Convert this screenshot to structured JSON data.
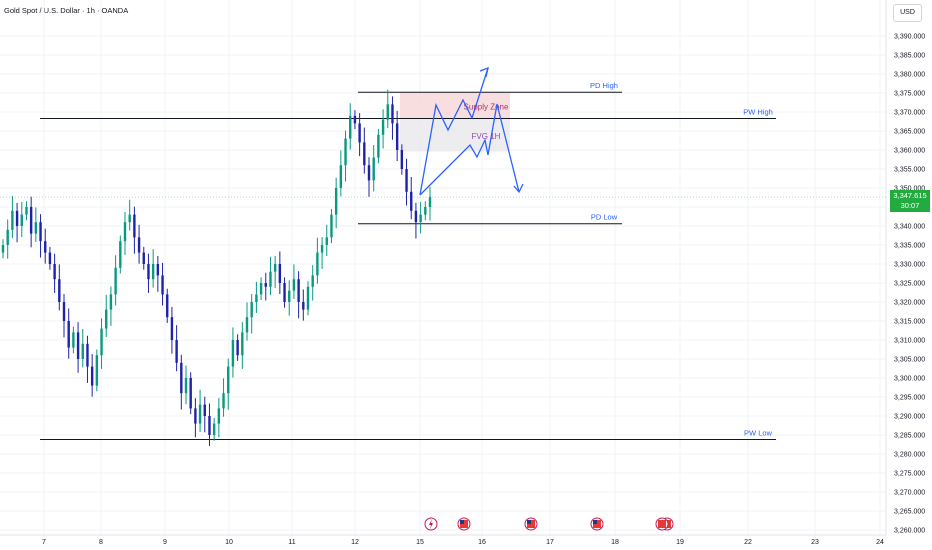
{
  "header": {
    "title": "Gold Spot / U.S. Dollar · 1h · OANDA"
  },
  "currency_button": "USD",
  "last_price": {
    "value": "3,347.615",
    "countdown": "30:07"
  },
  "colors": {
    "up": "#089981",
    "down": "#1e22aa",
    "grid": "#f2f3f5",
    "level": "#131722",
    "label": "#2962ff",
    "path": "#2962ff",
    "supply_zone": "#f7d6d8",
    "fvg": "#e8e8ec",
    "price_tag": "#22ab3e"
  },
  "event_icons": [
    "lightning-event-icon",
    "us-flag-event-icon",
    "us-flag-event-icon",
    "us-flag-event-icon",
    "us-flag-event-icon"
  ],
  "chart_data": {
    "type": "candlestick",
    "title": "Gold Spot / U.S. Dollar · 1h · OANDA",
    "y_axis": {
      "range": [
        3257,
        3395
      ],
      "ticks": [
        "3,390.000",
        "3,385.000",
        "3,380.000",
        "3,375.000",
        "3,370.000",
        "3,365.000",
        "3,360.000",
        "3,355.000",
        "3,350.000",
        "3,345.000",
        "3,340.000",
        "3,335.000",
        "3,330.000",
        "3,325.000",
        "3,320.000",
        "3,315.000",
        "3,310.000",
        "3,305.000",
        "3,300.000",
        "3,295.000",
        "3,290.000",
        "3,285.000",
        "3,280.000",
        "3,275.000",
        "3,270.000",
        "3,265.000",
        "3,260.000"
      ]
    },
    "x_axis": {
      "ticks": [
        "7",
        "8",
        "9",
        "10",
        "11",
        "12",
        "15",
        "16",
        "17",
        "18",
        "19",
        "22",
        "23",
        "24"
      ]
    },
    "levels": [
      {
        "label": "PD High",
        "price": 3375.2
      },
      {
        "label": "PW High",
        "price": 3368.3
      },
      {
        "label": "PD Low",
        "price": 3340.6
      },
      {
        "label": "PW Low",
        "price": 3283.8
      }
    ],
    "zones": [
      {
        "label": "Supply Zone",
        "top": 3375.2,
        "bottom": 3368.3
      },
      {
        "label": "FVG 1H",
        "top": 3368.3,
        "bottom": 3359.6
      }
    ],
    "closes": [
      3335,
      3339,
      3344,
      3340,
      3343,
      3345,
      3338,
      3341,
      3336,
      3333,
      3330,
      3326,
      3320,
      3315,
      3308,
      3312,
      3305,
      3309,
      3303,
      3298,
      3306,
      3313,
      3318,
      3322,
      3329,
      3336,
      3341,
      3343,
      3337,
      3333,
      3330,
      3326,
      3330,
      3327,
      3322,
      3316,
      3310,
      3304,
      3296,
      3300,
      3292,
      3288,
      3293,
      3290,
      3285,
      3288,
      3292,
      3296,
      3303,
      3310,
      3306,
      3312,
      3316,
      3320,
      3322,
      3325,
      3324,
      3328,
      3330,
      3325,
      3320,
      3323,
      3326,
      3320,
      3318,
      3324,
      3327,
      3333,
      3335,
      3337,
      3343,
      3350,
      3356,
      3363,
      3369,
      3367,
      3362,
      3356,
      3352,
      3358,
      3364,
      3368,
      3372,
      3367,
      3360,
      3355,
      3349,
      3344,
      3341,
      3343,
      3345,
      3347.6
    ]
  }
}
